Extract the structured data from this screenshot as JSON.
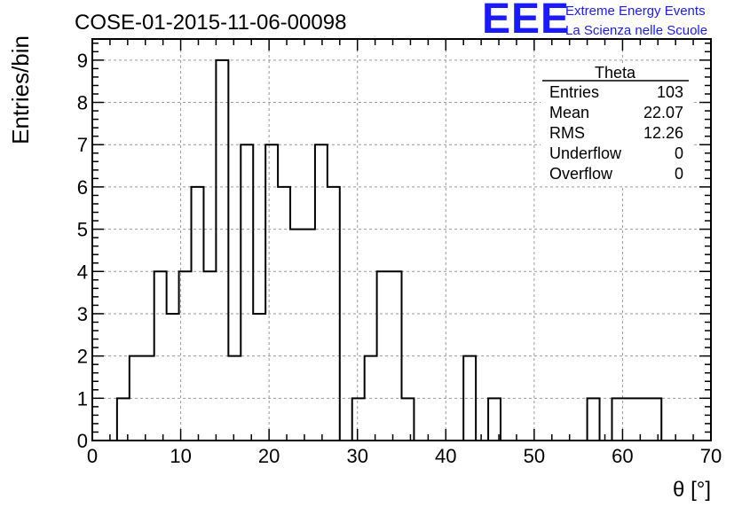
{
  "chart_data": {
    "type": "histogram",
    "title": "COSE-01-2015-11-06-00098",
    "xlabel": "θ [°]",
    "ylabel": "Entries/bin",
    "xlim": [
      0,
      70
    ],
    "ylim": [
      0,
      9.5
    ],
    "grid": true,
    "x_ticks": [
      0,
      10,
      20,
      30,
      40,
      50,
      60,
      70
    ],
    "y_ticks": [
      0,
      1,
      2,
      3,
      4,
      5,
      6,
      7,
      8,
      9
    ],
    "bin_edges": [
      2.8,
      4.2,
      5.6,
      7.0,
      8.4,
      9.8,
      11.2,
      12.6,
      14.0,
      15.4,
      16.8,
      18.2,
      19.6,
      21.0,
      22.4,
      23.8,
      25.2,
      26.6,
      28.0,
      29.4,
      30.8,
      32.2,
      33.6,
      35.0,
      36.4,
      37.8,
      39.2,
      40.6,
      42.0,
      43.4,
      44.8,
      46.2,
      47.6,
      49.0,
      50.4,
      51.8,
      53.2,
      54.6,
      56.0,
      57.4,
      58.8,
      60.2,
      61.6,
      63.0,
      64.4
    ],
    "counts": [
      1,
      2,
      2,
      4,
      3,
      4,
      6,
      4,
      9,
      2,
      7,
      3,
      7,
      6,
      5,
      5,
      7,
      6,
      0,
      1,
      2,
      4,
      4,
      1,
      0,
      0,
      0,
      0,
      2,
      0,
      1,
      0,
      0,
      0,
      0,
      0,
      0,
      0,
      1,
      0,
      1,
      1,
      1,
      1
    ],
    "stats_box": {
      "title": "Theta",
      "rows": [
        {
          "label": "Entries",
          "value": "103"
        },
        {
          "label": "Mean",
          "value": "22.07"
        },
        {
          "label": "RMS",
          "value": "12.26"
        },
        {
          "label": "Underflow",
          "value": "0"
        },
        {
          "label": "Overflow",
          "value": "0"
        }
      ]
    },
    "legend_position": "top-right"
  },
  "logo": {
    "mark": "EEE",
    "line1": "Extreme Energy Events",
    "line2": "La Scienza nelle Scuole",
    "color": "#1a1aff"
  }
}
